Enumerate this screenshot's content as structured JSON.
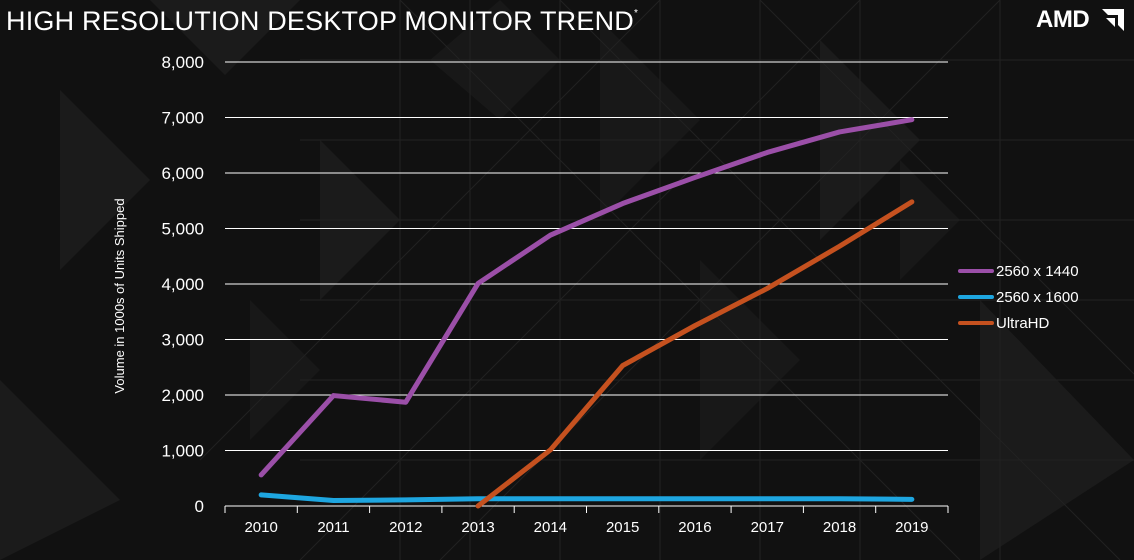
{
  "slide": {
    "title": "HIGH RESOLUTION DESKTOP MONITOR TREND",
    "title_mark": "*",
    "brand": "AMD"
  },
  "colors": {
    "background": "#111111",
    "grid": "#ffffff",
    "series_2560x1440": "#9b4fa8",
    "series_2560x1600": "#1ea6e0",
    "series_ultrahd": "#c5511f"
  },
  "chart_data": {
    "type": "line",
    "title": "",
    "xlabel": "",
    "ylabel": "Volume in 1000s of Units Shipped",
    "ylim": [
      0,
      8000
    ],
    "yticks": [
      "0",
      "1,000",
      "2,000",
      "3,000",
      "4,000",
      "5,000",
      "6,000",
      "7,000",
      "8,000"
    ],
    "grid": true,
    "legend_position": "right",
    "categories": [
      "2010",
      "2011",
      "2012",
      "2013",
      "2014",
      "2015",
      "2016",
      "2017",
      "2018",
      "2019"
    ],
    "series": [
      {
        "name": "2560 x 1440",
        "color": "#9b4fa8",
        "values": [
          560,
          1990,
          1870,
          4010,
          4880,
          5450,
          5920,
          6370,
          6740,
          6960
        ]
      },
      {
        "name": "2560 x 1600",
        "color": "#1ea6e0",
        "values": [
          200,
          100,
          110,
          130,
          130,
          130,
          130,
          130,
          130,
          120
        ]
      },
      {
        "name": "UltraHD",
        "color": "#c5511f",
        "values": [
          null,
          null,
          null,
          0,
          1010,
          2530,
          3250,
          3920,
          4680,
          5480
        ]
      }
    ]
  }
}
